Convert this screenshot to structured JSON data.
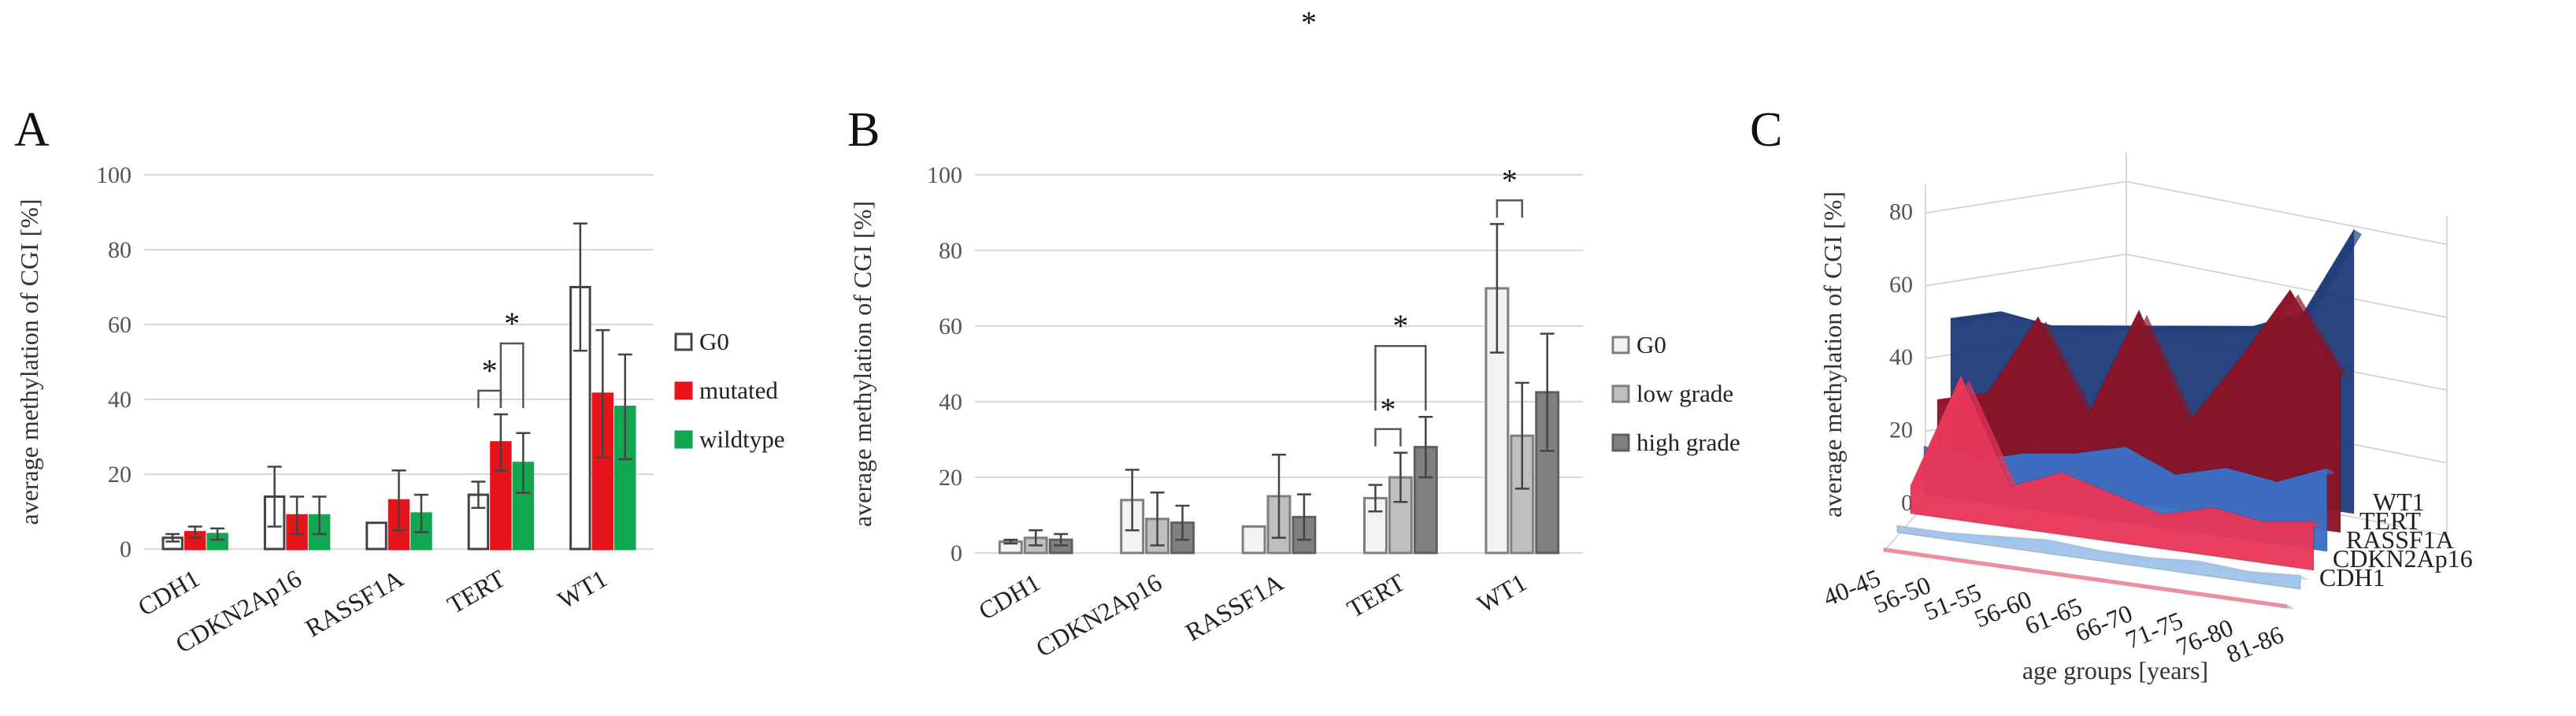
{
  "top_mark": "*",
  "chart_data": [
    {
      "type": "bar",
      "panel_label": "A",
      "ylabel": "average methylation of CGI [%]",
      "yticks": [
        0,
        20,
        40,
        60,
        80,
        100
      ],
      "ylim": [
        0,
        100
      ],
      "categories": [
        "CDH1",
        "CDKN2Ap16",
        "RASSF1A",
        "TERT",
        "WT1"
      ],
      "series": [
        {
          "name": "G0",
          "color": "#ffffff",
          "edge": "#444444",
          "values": [
            3,
            14,
            7,
            14.5,
            70
          ],
          "errors": [
            1,
            8,
            0,
            3.5,
            17
          ]
        },
        {
          "name": "mutated",
          "color": "#e8141b",
          "edge": "#e8141b",
          "values": [
            4.5,
            9,
            13,
            28.5,
            41.5
          ],
          "errors": [
            1.5,
            5,
            8,
            7.5,
            17
          ]
        },
        {
          "name": "wildtype",
          "color": "#12a650",
          "edge": "#12a650",
          "values": [
            4,
            9,
            9.5,
            23,
            38
          ],
          "errors": [
            1.5,
            5,
            5,
            8,
            14
          ]
        }
      ],
      "significance": [
        {
          "category": "TERT",
          "from": 0,
          "to": 1,
          "label": "*"
        },
        {
          "category": "TERT",
          "from": 1,
          "to": 2,
          "label": "*"
        }
      ],
      "legend_position": "right"
    },
    {
      "type": "bar",
      "panel_label": "B",
      "ylabel": "average methylation of CGI [%]",
      "yticks": [
        0,
        20,
        40,
        60,
        80,
        100
      ],
      "ylim": [
        0,
        100
      ],
      "categories": [
        "CDH1",
        "CDKN2Ap16",
        "RASSF1A",
        "TERT",
        "WT1"
      ],
      "series": [
        {
          "name": "G0",
          "color": "#f2f2f2",
          "edge": "#7f7f7f",
          "values": [
            3,
            14,
            7,
            14.5,
            70
          ],
          "errors": [
            0.5,
            8,
            0,
            3.5,
            17
          ]
        },
        {
          "name": "low grade",
          "color": "#bfbfbf",
          "edge": "#7f7f7f",
          "values": [
            4,
            9,
            15,
            20,
            31
          ],
          "errors": [
            2,
            7,
            11,
            6.5,
            14
          ]
        },
        {
          "name": "high grade",
          "color": "#808080",
          "edge": "#606060",
          "values": [
            3.5,
            8,
            9.5,
            28,
            42.5
          ],
          "errors": [
            1.5,
            4.5,
            6,
            8,
            15.5
          ]
        }
      ],
      "significance": [
        {
          "category": "TERT",
          "from": 0,
          "to": 1,
          "label": "*"
        },
        {
          "category": "TERT",
          "from": 0,
          "to": 2,
          "label": "*"
        },
        {
          "category": "WT1",
          "from": 0,
          "to": 1,
          "label": "*"
        }
      ],
      "legend_position": "right"
    },
    {
      "type": "area",
      "panel_label": "C",
      "ylabel": "average methylation of CGI [%]",
      "xlabel": "age groups [years]",
      "yticks": [
        0,
        20,
        40,
        60,
        80
      ],
      "ylim": [
        0,
        80
      ],
      "categories": [
        "40-45",
        "56-50",
        "51-55",
        "56-60",
        "61-65",
        "66-70",
        "71-75",
        "76-80",
        "81-86"
      ],
      "series": [
        {
          "name": "WT1",
          "color": "#1f3d7a",
          "values": [
            40,
            44,
            42,
            44,
            46,
            48,
            50,
            56,
            82
          ]
        },
        {
          "name": "TERT",
          "color": "#8b1426",
          "values": [
            22,
            26,
            50,
            24,
            56,
            26,
            46,
            68,
            46
          ]
        },
        {
          "name": "RASSF1A",
          "color": "#3a6fc4",
          "values": [
            14,
            12,
            16,
            18,
            22,
            16,
            20,
            18,
            24
          ]
        },
        {
          "name": "CDKN2Ap16",
          "color": "#e8365a",
          "values": [
            8,
            42,
            12,
            18,
            14,
            10,
            14,
            12,
            14
          ]
        },
        {
          "name": "CDH1",
          "color": "#9fc4ea",
          "values": [
            2,
            2,
            3,
            4,
            3,
            3,
            4,
            3,
            4
          ]
        },
        {
          "name": "",
          "color": "#f28aa0",
          "values": [
            1,
            1,
            1,
            1,
            1,
            1,
            1,
            1,
            1
          ]
        }
      ]
    }
  ]
}
